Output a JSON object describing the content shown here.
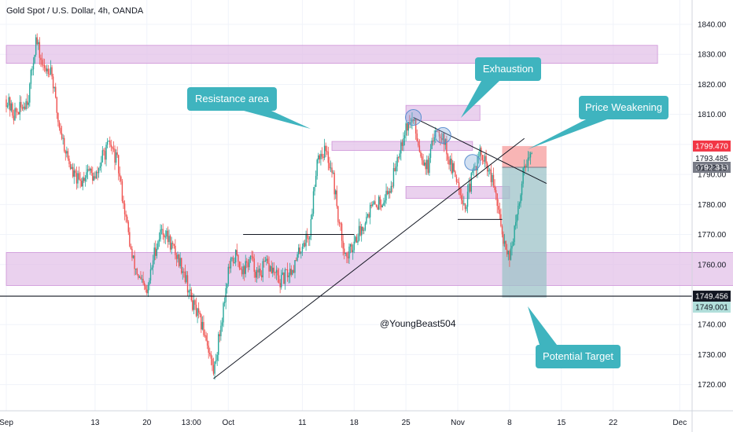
{
  "chart_data": {
    "type": "candlestick",
    "title": "Gold Spot / U.S. Dollar, 4h, OANDA",
    "ylim": [
      1713,
      1848
    ],
    "y_ticks": [
      1720,
      1730,
      1740,
      1750,
      1760,
      1770,
      1780,
      1790,
      1800,
      1810,
      1820,
      1830,
      1840
    ],
    "x_ticks": [
      {
        "label": "Sep",
        "day": 0
      },
      {
        "label": "13",
        "day": 12
      },
      {
        "label": "20",
        "day": 19
      },
      {
        "label": "13:00",
        "day": 25
      },
      {
        "label": "Oct",
        "day": 30
      },
      {
        "label": "11",
        "day": 40
      },
      {
        "label": "18",
        "day": 47
      },
      {
        "label": "25",
        "day": 54
      },
      {
        "label": "Nov",
        "day": 61
      },
      {
        "label": "8",
        "day": 68
      },
      {
        "label": "15",
        "day": 75
      },
      {
        "label": "22",
        "day": 82
      },
      {
        "label": "Dec",
        "day": 91
      }
    ],
    "price_path": [
      [
        0,
        1815
      ],
      [
        1,
        1810
      ],
      [
        2,
        1812
      ],
      [
        3,
        1816
      ],
      [
        4,
        1835
      ],
      [
        5,
        1825
      ],
      [
        6,
        1826
      ],
      [
        7,
        1808
      ],
      [
        8,
        1798
      ],
      [
        9,
        1790
      ],
      [
        10,
        1787
      ],
      [
        11,
        1792
      ],
      [
        12,
        1788
      ],
      [
        13,
        1796
      ],
      [
        14,
        1800
      ],
      [
        15,
        1794
      ],
      [
        16,
        1778
      ],
      [
        17,
        1762
      ],
      [
        18,
        1755
      ],
      [
        19,
        1750
      ],
      [
        20,
        1764
      ],
      [
        21,
        1772
      ],
      [
        22,
        1768
      ],
      [
        23,
        1763
      ],
      [
        24,
        1758
      ],
      [
        25,
        1748
      ],
      [
        26,
        1742
      ],
      [
        27,
        1736
      ],
      [
        28,
        1724
      ],
      [
        29,
        1740
      ],
      [
        30,
        1758
      ],
      [
        31,
        1763
      ],
      [
        32,
        1758
      ],
      [
        33,
        1762
      ],
      [
        34,
        1756
      ],
      [
        35,
        1760
      ],
      [
        36,
        1758
      ],
      [
        37,
        1754
      ],
      [
        38,
        1757
      ],
      [
        39,
        1760
      ],
      [
        40,
        1767
      ],
      [
        41,
        1770
      ],
      [
        42,
        1796
      ],
      [
        43,
        1798
      ],
      [
        44,
        1792
      ],
      [
        45,
        1773
      ],
      [
        46,
        1762
      ],
      [
        47,
        1768
      ],
      [
        48,
        1772
      ],
      [
        49,
        1778
      ],
      [
        50,
        1780
      ],
      [
        51,
        1782
      ],
      [
        52,
        1786
      ],
      [
        53,
        1798
      ],
      [
        54,
        1806
      ],
      [
        55,
        1808
      ],
      [
        56,
        1797
      ],
      [
        57,
        1792
      ],
      [
        58,
        1806
      ],
      [
        59,
        1803
      ],
      [
        60,
        1793
      ],
      [
        61,
        1788
      ],
      [
        62,
        1779
      ],
      [
        63,
        1790
      ],
      [
        64,
        1797
      ],
      [
        65,
        1792
      ],
      [
        66,
        1785
      ],
      [
        67,
        1770
      ],
      [
        68,
        1763
      ],
      [
        69,
        1775
      ],
      [
        70,
        1794
      ],
      [
        71,
        1796
      ]
    ],
    "zones": [
      {
        "y1": 1827,
        "y2": 1833,
        "x1": 0,
        "x2": 88
      },
      {
        "y1": 1808,
        "y2": 1813,
        "x1": 54,
        "x2": 64
      },
      {
        "y1": 1798,
        "y2": 1801,
        "x1": 44,
        "x2": 63
      },
      {
        "y1": 1782,
        "y2": 1786,
        "x1": 54,
        "x2": 68
      },
      {
        "y1": 1753,
        "y2": 1764,
        "x1": 0,
        "x2": 101
      }
    ],
    "trendlines": [
      {
        "x1": 28,
        "y1": 1722,
        "x2": 70,
        "y2": 1802
      },
      {
        "x1": 55,
        "y1": 1809,
        "x2": 73,
        "y2": 1787
      },
      {
        "x1": 32,
        "y1": 1770,
        "x2": 47,
        "y2": 1770
      },
      {
        "x1": 61,
        "y1": 1775,
        "x2": 67,
        "y2": 1775
      }
    ],
    "circles": [
      [
        55,
        1809
      ],
      [
        59,
        1803
      ],
      [
        63,
        1794
      ]
    ],
    "position": {
      "entry": 1792.38,
      "stop": 1799.47,
      "target": 1749.001,
      "x1": 67,
      "x2": 73
    },
    "horizontal_line": 1749.456,
    "labels": {
      "last_price": "1799.470",
      "current_price": "1793.485",
      "countdown": "01:22:15",
      "entry_price": "1792.380",
      "line_price": "1749.456",
      "target_price": "1749.001"
    },
    "callouts": [
      {
        "id": "resistance",
        "text": "Resistance area"
      },
      {
        "id": "exhaustion",
        "text": "Exhaustion"
      },
      {
        "id": "weakening",
        "text": "Price Weakening"
      },
      {
        "id": "target",
        "text": "Potential Target"
      }
    ],
    "watermark": "@YoungBeast504",
    "colors": {
      "up": "#26a69a",
      "down": "#ef5350",
      "zone": "#e1bee7",
      "callout": "#3fb4bf",
      "stop_zone": "#f7a8a8",
      "target_zone": "#9dc3c8"
    }
  }
}
